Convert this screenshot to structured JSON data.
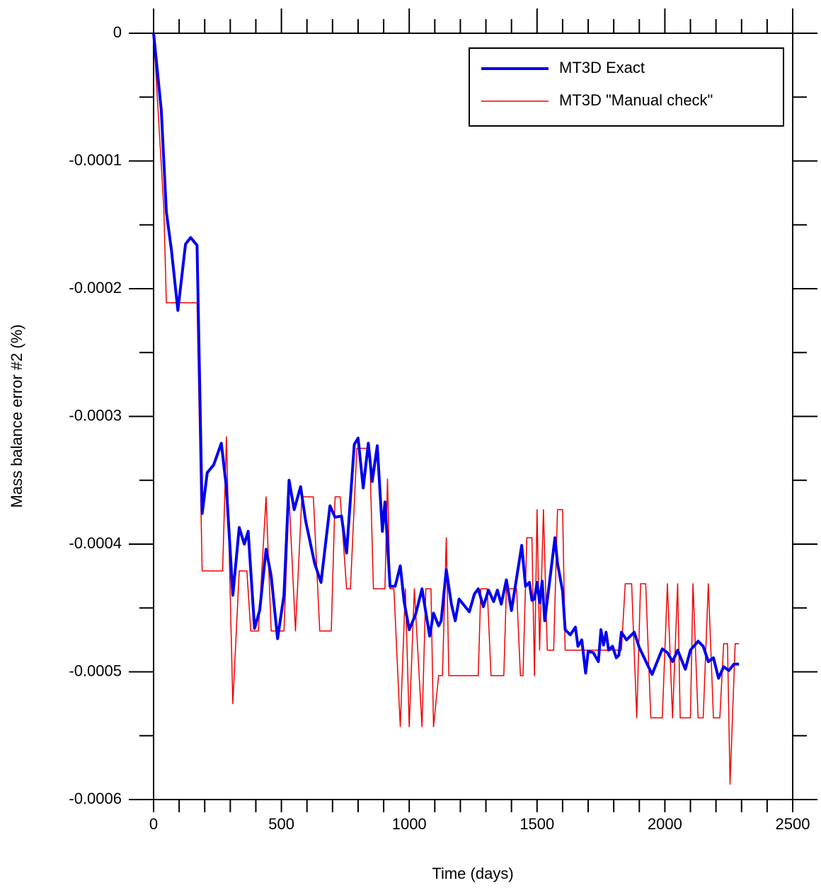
{
  "chart_data": {
    "type": "line",
    "xlabel": "Time (days)",
    "ylabel": "Mass balance error #2 (%)",
    "xlim": [
      0,
      2500
    ],
    "xticks": [
      0,
      500,
      1000,
      1500,
      2000,
      2500
    ],
    "ylim": [
      -0.0006,
      0
    ],
    "yticks": [
      {
        "value": 0,
        "label": "0"
      },
      {
        "value": -0.0001,
        "label": "-0.0001"
      },
      {
        "value": -0.0002,
        "label": "-0.0002"
      },
      {
        "value": -0.0003,
        "label": "-0.0003"
      },
      {
        "value": -0.0004,
        "label": "-0.0004"
      },
      {
        "value": -0.0005,
        "label": "-0.0005"
      },
      {
        "value": -0.0006,
        "label": "-0.0006"
      }
    ],
    "legend": "upper right",
    "series": [
      {
        "name": "MT3D Exact",
        "color": "#0000ee",
        "width": 4,
        "x": [
          0,
          30,
          50,
          70,
          95,
          125,
          145,
          170,
          190,
          210,
          235,
          265,
          285,
          310,
          335,
          355,
          370,
          395,
          415,
          440,
          460,
          485,
          510,
          530,
          550,
          575,
          595,
          630,
          655,
          690,
          710,
          735,
          755,
          785,
          800,
          820,
          840,
          855,
          875,
          895,
          905,
          925,
          945,
          965,
          980,
          1000,
          1025,
          1050,
          1080,
          1095,
          1115,
          1125,
          1145,
          1165,
          1180,
          1195,
          1215,
          1235,
          1255,
          1270,
          1290,
          1310,
          1330,
          1345,
          1360,
          1380,
          1400,
          1440,
          1455,
          1470,
          1480,
          1490,
          1500,
          1510,
          1520,
          1530,
          1545,
          1570,
          1580,
          1600,
          1610,
          1630,
          1650,
          1660,
          1675,
          1690,
          1700,
          1720,
          1740,
          1750,
          1760,
          1770,
          1780,
          1795,
          1810,
          1820,
          1830,
          1850,
          1880,
          1900,
          1950,
          1990,
          2010,
          2030,
          2050,
          2080,
          2100,
          2130,
          2150,
          2170,
          2190,
          2210,
          2230,
          2250,
          2270,
          2290
        ],
        "values": [
          0,
          -6e-05,
          -0.00014,
          -0.00017,
          -0.000217,
          -0.000165,
          -0.00016,
          -0.000166,
          -0.000376,
          -0.000344,
          -0.000338,
          -0.000321,
          -0.000356,
          -0.00044,
          -0.000387,
          -0.0004,
          -0.00039,
          -0.000466,
          -0.000452,
          -0.000404,
          -0.000425,
          -0.000474,
          -0.00044,
          -0.00035,
          -0.000373,
          -0.000355,
          -0.000382,
          -0.000415,
          -0.00043,
          -0.00037,
          -0.000379,
          -0.000378,
          -0.000407,
          -0.000322,
          -0.000317,
          -0.000356,
          -0.000321,
          -0.000351,
          -0.000323,
          -0.00039,
          -0.000367,
          -0.000433,
          -0.000433,
          -0.000417,
          -0.000445,
          -0.000467,
          -0.000455,
          -0.000435,
          -0.000472,
          -0.000454,
          -0.000464,
          -0.00046,
          -0.00042,
          -0.000447,
          -0.00046,
          -0.000443,
          -0.000448,
          -0.000453,
          -0.000439,
          -0.000435,
          -0.000449,
          -0.000436,
          -0.000445,
          -0.000436,
          -0.000447,
          -0.000428,
          -0.000452,
          -0.000401,
          -0.000433,
          -0.00043,
          -0.000444,
          -0.000443,
          -0.00043,
          -0.000446,
          -0.000429,
          -0.00046,
          -0.000436,
          -0.000395,
          -0.000415,
          -0.000437,
          -0.000467,
          -0.000471,
          -0.000465,
          -0.00048,
          -0.000475,
          -0.000501,
          -0.000484,
          -0.000485,
          -0.000492,
          -0.000467,
          -0.000479,
          -0.000469,
          -0.000483,
          -0.00048,
          -0.000489,
          -0.000487,
          -0.000469,
          -0.000475,
          -0.000469,
          -0.000481,
          -0.000502,
          -0.000482,
          -0.000485,
          -0.000492,
          -0.000483,
          -0.000498,
          -0.000483,
          -0.000476,
          -0.00048,
          -0.000492,
          -0.000489,
          -0.000505,
          -0.000496,
          -0.000499,
          -0.000494,
          -0.000494
        ]
      },
      {
        "name": "MT3D \"Manual check\"",
        "color": "#ee0000",
        "width": 1.5,
        "x": [
          0,
          40,
          50,
          170,
          190,
          270,
          285,
          310,
          335,
          365,
          380,
          410,
          440,
          460,
          510,
          530,
          555,
          580,
          625,
          650,
          695,
          710,
          730,
          755,
          770,
          795,
          845,
          860,
          905,
          915,
          925,
          940,
          965,
          985,
          1000,
          1020,
          1050,
          1065,
          1085,
          1095,
          1115,
          1130,
          1145,
          1155,
          1270,
          1280,
          1305,
          1320,
          1370,
          1380,
          1420,
          1435,
          1445,
          1460,
          1480,
          1490,
          1500,
          1510,
          1525,
          1540,
          1565,
          1580,
          1600,
          1610,
          1830,
          1845,
          1870,
          1890,
          1905,
          1925,
          1945,
          1990,
          2010,
          2030,
          2050,
          2060,
          2100,
          2110,
          2130,
          2150,
          2170,
          2190,
          2215,
          2230,
          2245,
          2255,
          2275,
          2290
        ],
        "values": [
          0,
          -0.000137,
          -0.000211,
          -0.000211,
          -0.000421,
          -0.000421,
          -0.000316,
          -0.000525,
          -0.000421,
          -0.000421,
          -0.000468,
          -0.000468,
          -0.000363,
          -0.000468,
          -0.000468,
          -0.000363,
          -0.000468,
          -0.000363,
          -0.000363,
          -0.000468,
          -0.000468,
          -0.000363,
          -0.000363,
          -0.000435,
          -0.000435,
          -0.000325,
          -0.000325,
          -0.000435,
          -0.000435,
          -0.000349,
          -0.000435,
          -0.000435,
          -0.000543,
          -0.000435,
          -0.000543,
          -0.000435,
          -0.000543,
          -0.000435,
          -0.000435,
          -0.000543,
          -0.000503,
          -0.000503,
          -0.000395,
          -0.000503,
          -0.000503,
          -0.000435,
          -0.000435,
          -0.000503,
          -0.000503,
          -0.000435,
          -0.000435,
          -0.000503,
          -0.000503,
          -0.000395,
          -0.000395,
          -0.000503,
          -0.000373,
          -0.000483,
          -0.000373,
          -0.000483,
          -0.000483,
          -0.000373,
          -0.000373,
          -0.000483,
          -0.000483,
          -0.000431,
          -0.000431,
          -0.000536,
          -0.000431,
          -0.000431,
          -0.000536,
          -0.000536,
          -0.000431,
          -0.000536,
          -0.000431,
          -0.000536,
          -0.000536,
          -0.000431,
          -0.000536,
          -0.000536,
          -0.000431,
          -0.000536,
          -0.000536,
          -0.000478,
          -0.000478,
          -0.000588,
          -0.000478,
          -0.000478
        ]
      }
    ]
  }
}
